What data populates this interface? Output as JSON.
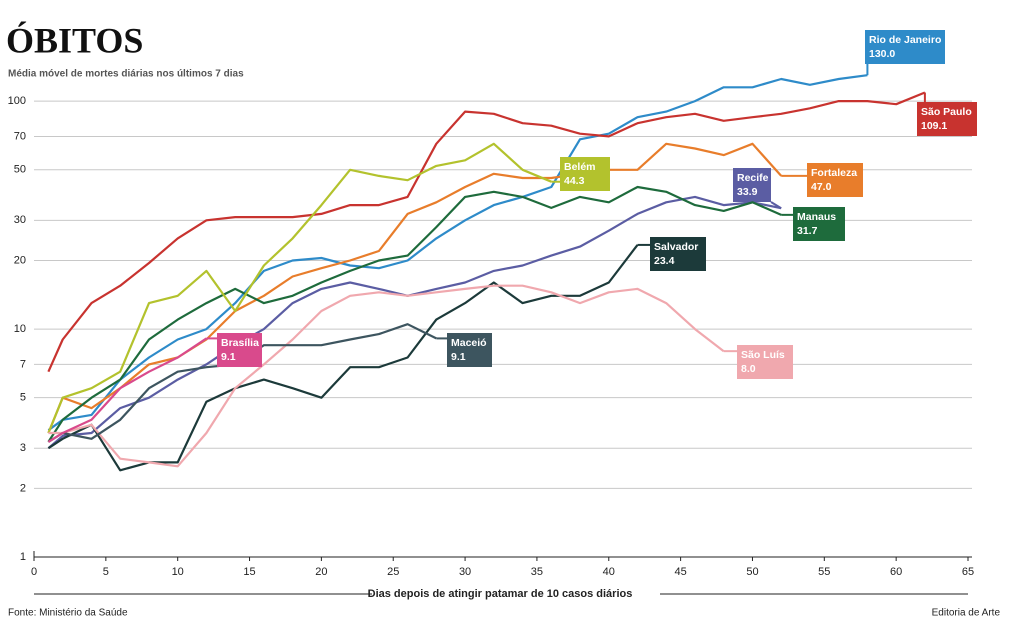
{
  "chart_data": {
    "type": "line",
    "title": "ÓBITOS",
    "subtitle": "Média móvel de mortes diárias nos últimos 7 dias",
    "x_label": "Dias depois de atingir patamar de 10 casos diários",
    "source": "Fonte: Ministério da Saúde",
    "credit": "Editoria de Arte",
    "log_y": true,
    "grid": true,
    "xlim": [
      0,
      65
    ],
    "xticks": [
      0,
      5,
      10,
      15,
      20,
      25,
      30,
      35,
      40,
      45,
      50,
      55,
      60,
      65
    ],
    "ylim": [
      1,
      150
    ],
    "yticks": [
      1,
      2,
      3,
      5,
      7,
      10,
      20,
      30,
      50,
      70,
      100
    ],
    "x": [
      1,
      2,
      4,
      6,
      8,
      10,
      12,
      14,
      16,
      18,
      20,
      22,
      24,
      26,
      28,
      30,
      32,
      34,
      36,
      38,
      40,
      42,
      44,
      46,
      48,
      50,
      52,
      54,
      56,
      58,
      60,
      62
    ],
    "series": [
      {
        "name": "Rio de Janeiro",
        "color": "#2e8bc9",
        "values": [
          3.6,
          4,
          4.2,
          6,
          7.5,
          9,
          10,
          13,
          18,
          20,
          20.5,
          19,
          18.5,
          20,
          25,
          30,
          35,
          38,
          42,
          68,
          72,
          85,
          90,
          100,
          115,
          115,
          125,
          118,
          125,
          130,
          null,
          null
        ],
        "value_labels": [
          null,
          null,
          null,
          null,
          null,
          null,
          null,
          null,
          null,
          null,
          null,
          null,
          null,
          null,
          null,
          null,
          null,
          null,
          null,
          null,
          null,
          null,
          null,
          null,
          null,
          null,
          null,
          null,
          null,
          "130.0",
          null,
          null
        ]
      },
      {
        "name": "São Paulo",
        "color": "#c8332f",
        "values": [
          6.5,
          9,
          13,
          15.5,
          19.5,
          25,
          30,
          31,
          31,
          31,
          32,
          35,
          35,
          38,
          65,
          90,
          88,
          80,
          78,
          72,
          70,
          80,
          85,
          88,
          82,
          85,
          88,
          93,
          100,
          100,
          97,
          109.1
        ],
        "value_labels": [
          null,
          null,
          null,
          null,
          null,
          null,
          null,
          null,
          null,
          null,
          null,
          null,
          null,
          null,
          null,
          null,
          null,
          null,
          null,
          null,
          null,
          null,
          null,
          null,
          null,
          null,
          null,
          null,
          null,
          null,
          null,
          "109.1"
        ]
      },
      {
        "name": "Fortaleza",
        "color": "#e87d2b",
        "values": [
          3.5,
          5,
          4.5,
          5.5,
          7,
          7.5,
          9,
          12,
          14,
          17,
          18.5,
          20,
          22,
          32,
          36,
          42,
          48,
          46,
          46,
          48,
          50,
          50,
          65,
          62,
          58,
          65,
          47,
          null,
          null,
          null,
          null,
          null
        ],
        "value_labels": [
          null,
          null,
          null,
          null,
          null,
          null,
          null,
          null,
          null,
          null,
          null,
          null,
          null,
          null,
          null,
          null,
          null,
          null,
          null,
          null,
          null,
          null,
          null,
          null,
          null,
          null,
          "47.0",
          null,
          null,
          null,
          null,
          null
        ]
      },
      {
        "name": "Recife",
        "color": "#5b5da3",
        "values": [
          3,
          3.4,
          3.5,
          4.5,
          5,
          6,
          7,
          8.5,
          10,
          13,
          15,
          16,
          15,
          14,
          15,
          16,
          18,
          19,
          21,
          23,
          27,
          32,
          36,
          38,
          35,
          36,
          33.9,
          null,
          null,
          null,
          null,
          null
        ],
        "value_labels": [
          null,
          null,
          null,
          null,
          null,
          null,
          null,
          null,
          null,
          null,
          null,
          null,
          null,
          null,
          null,
          null,
          null,
          null,
          null,
          null,
          null,
          null,
          null,
          null,
          null,
          null,
          "33.9",
          null,
          null,
          null,
          null,
          null
        ]
      },
      {
        "name": "Manaus",
        "color": "#1e6b3c",
        "values": [
          3.2,
          4,
          5,
          6,
          9,
          11,
          13,
          15,
          13,
          14,
          16,
          18,
          20,
          21,
          28,
          38,
          40,
          38,
          34,
          38,
          36,
          42,
          40,
          35,
          33,
          36,
          31.7,
          null,
          null,
          null,
          null,
          null
        ],
        "value_labels": [
          null,
          null,
          null,
          null,
          null,
          null,
          null,
          null,
          null,
          null,
          null,
          null,
          null,
          null,
          null,
          null,
          null,
          null,
          null,
          null,
          null,
          null,
          null,
          null,
          null,
          null,
          "31.7",
          null,
          null,
          null,
          null,
          null
        ]
      },
      {
        "name": "Belém",
        "color": "#b3c22d",
        "values": [
          3.5,
          5,
          5.5,
          6.5,
          13,
          14,
          18,
          12,
          19,
          25,
          35,
          50,
          47,
          45,
          52,
          55,
          65,
          50,
          44.3,
          null,
          null,
          null,
          null,
          null,
          null,
          null,
          null,
          null,
          null,
          null,
          null,
          null
        ],
        "value_labels": [
          null,
          null,
          null,
          null,
          null,
          null,
          null,
          null,
          null,
          null,
          null,
          null,
          null,
          null,
          null,
          null,
          null,
          null,
          "44.3",
          null,
          null,
          null,
          null,
          null,
          null,
          null,
          null,
          null,
          null,
          null,
          null,
          null
        ]
      },
      {
        "name": "Salvador",
        "color": "#1c3a3a",
        "values": [
          3,
          3.3,
          3.8,
          2.4,
          2.6,
          2.6,
          4.8,
          5.5,
          6,
          5.5,
          5,
          6.8,
          6.8,
          7.5,
          11,
          13,
          16,
          13,
          14,
          14,
          16,
          23.4,
          null,
          null,
          null,
          null,
          null,
          null,
          null,
          null,
          null,
          null
        ],
        "value_labels": [
          null,
          null,
          null,
          null,
          null,
          null,
          null,
          null,
          null,
          null,
          null,
          null,
          null,
          null,
          null,
          null,
          null,
          null,
          null,
          null,
          null,
          "23.4",
          null,
          null,
          null,
          null,
          null,
          null,
          null,
          null,
          null,
          null
        ]
      },
      {
        "name": "São Luís",
        "color": "#f0a8ae",
        "values": [
          3.5,
          3.5,
          3.8,
          2.7,
          2.6,
          2.5,
          3.5,
          5.5,
          7,
          9,
          12,
          14,
          14.5,
          14,
          14.5,
          15,
          15.5,
          15.5,
          14.5,
          13,
          14.5,
          15,
          13,
          10,
          8,
          null,
          null,
          null,
          null,
          null,
          null,
          null
        ],
        "value_labels": [
          null,
          null,
          null,
          null,
          null,
          null,
          null,
          null,
          null,
          null,
          null,
          null,
          null,
          null,
          null,
          null,
          null,
          null,
          null,
          null,
          null,
          null,
          null,
          null,
          "8.0",
          null,
          null,
          null,
          null,
          null,
          null,
          null
        ]
      },
      {
        "name": "Maceió",
        "color": "#3d555f",
        "values": [
          3.2,
          3.5,
          3.3,
          4,
          5.5,
          6.5,
          6.8,
          7,
          8.5,
          8.5,
          8.5,
          9,
          9.5,
          10.5,
          9.1,
          null,
          null,
          null,
          null,
          null,
          null,
          null,
          null,
          null,
          null,
          null,
          null,
          null,
          null,
          null,
          null,
          null
        ],
        "value_labels": [
          null,
          null,
          null,
          null,
          null,
          null,
          null,
          null,
          null,
          null,
          null,
          null,
          null,
          null,
          "9.1",
          null,
          null,
          null,
          null,
          null,
          null,
          null,
          null,
          null,
          null,
          null,
          null,
          null,
          null,
          null,
          null,
          null
        ]
      },
      {
        "name": "Brasília",
        "color": "#d94a8c",
        "values": [
          3.2,
          3.5,
          4,
          5.5,
          6.5,
          7.5,
          9.1,
          null,
          null,
          null,
          null,
          null,
          null,
          null,
          null,
          null,
          null,
          null,
          null,
          null,
          null,
          null,
          null,
          null,
          null,
          null,
          null,
          null,
          null,
          null,
          null,
          null
        ],
        "value_labels": [
          null,
          null,
          null,
          null,
          null,
          null,
          "9.1",
          null,
          null,
          null,
          null,
          null,
          null,
          null,
          null,
          null,
          null,
          null,
          null,
          null,
          null,
          null,
          null,
          null,
          null,
          null,
          null,
          null,
          null,
          null,
          null,
          null
        ]
      }
    ]
  }
}
